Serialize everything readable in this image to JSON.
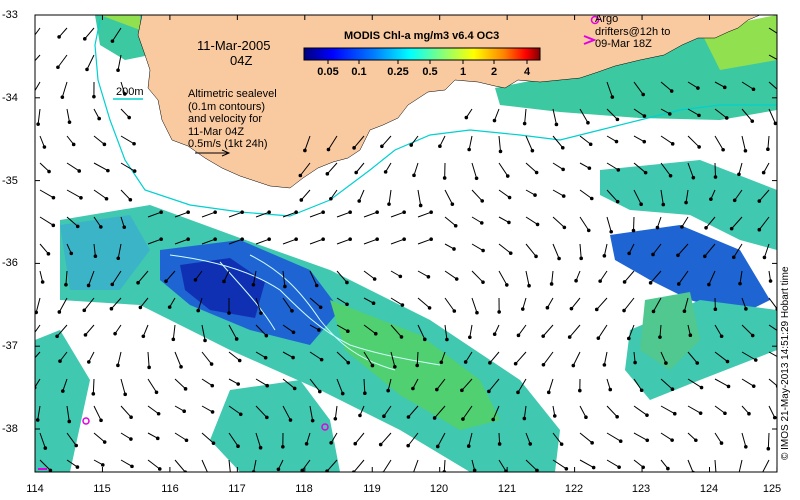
{
  "map": {
    "date_label": "11-Mar-2005",
    "time_label": "04Z",
    "colorbar": {
      "title": "MODIS Chl-a mg/m3 v6.4 OC3",
      "ticks": [
        "0.05",
        "0.1",
        "0.25",
        "0.5",
        "1",
        "2",
        "4"
      ]
    },
    "isobath_label": "200m",
    "altimetry_note": "Altimetric sealevel\n(0.1m contours)\nand velocity for\n11-Mar 04Z\n0.5m/s (1kt 24h)",
    "argo_note": "Argo\ndrifters@12h to\n09-Mar 18Z",
    "credit": "© IMOS 21-May-2013 14:51:29 Hobart time",
    "x_ticks": [
      "114",
      "115",
      "116",
      "117",
      "118",
      "119",
      "120",
      "121",
      "122",
      "123",
      "124",
      "125"
    ],
    "y_ticks": [
      "-33",
      "-34",
      "-35",
      "-36",
      "-37",
      "-38"
    ],
    "colors": {
      "land": "#f9c9a0",
      "frame": "#000000",
      "contour": "#00d0d0",
      "argo": "#e000e0",
      "colormap": [
        "#00007f",
        "#0000ff",
        "#0080ff",
        "#00ffff",
        "#80ff80",
        "#ffff00",
        "#ff8000",
        "#ff0000",
        "#7f0000"
      ]
    }
  }
}
